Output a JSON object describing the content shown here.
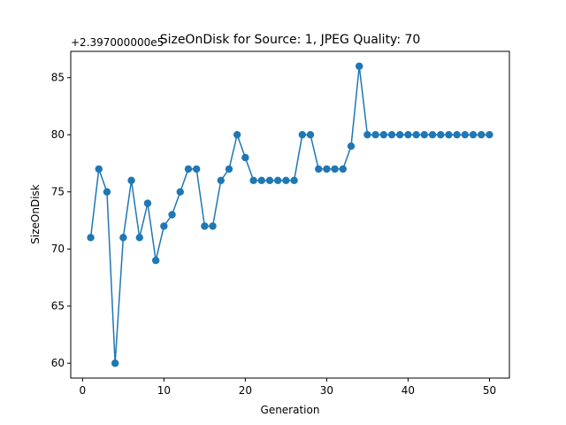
{
  "chart_data": {
    "type": "line",
    "title": "SizeOnDisk for Source: 1, JPEG Quality: 70",
    "xlabel": "Generation",
    "ylabel": "SizeOnDisk",
    "y_offset_label": "+2.397000000e5",
    "xlim": [
      -1.45,
      52.45
    ],
    "ylim": [
      58.7,
      87.3
    ],
    "x_ticks": [
      0,
      10,
      20,
      30,
      40,
      50
    ],
    "y_ticks": [
      60,
      65,
      70,
      75,
      80,
      85
    ],
    "grid": false,
    "legend": "none",
    "series": [
      {
        "color": "#1f77b4",
        "marker": "circle",
        "x": [
          1,
          2,
          3,
          4,
          5,
          6,
          7,
          8,
          9,
          10,
          11,
          12,
          13,
          14,
          15,
          16,
          17,
          18,
          19,
          20,
          21,
          22,
          23,
          24,
          25,
          26,
          27,
          28,
          29,
          30,
          31,
          32,
          33,
          34,
          35,
          36,
          37,
          38,
          39,
          40,
          41,
          42,
          43,
          44,
          45,
          46,
          47,
          48,
          49,
          50
        ],
        "values": [
          71,
          77,
          75,
          60,
          71,
          76,
          71,
          74,
          69,
          72,
          73,
          75,
          77,
          77,
          72,
          72,
          76,
          77,
          80,
          78,
          76,
          76,
          76,
          76,
          76,
          76,
          80,
          80,
          77,
          77,
          77,
          77,
          79,
          86,
          80,
          80,
          80,
          80,
          80,
          80,
          80,
          80,
          80,
          80,
          80,
          80,
          80,
          80,
          80,
          80
        ]
      }
    ]
  }
}
